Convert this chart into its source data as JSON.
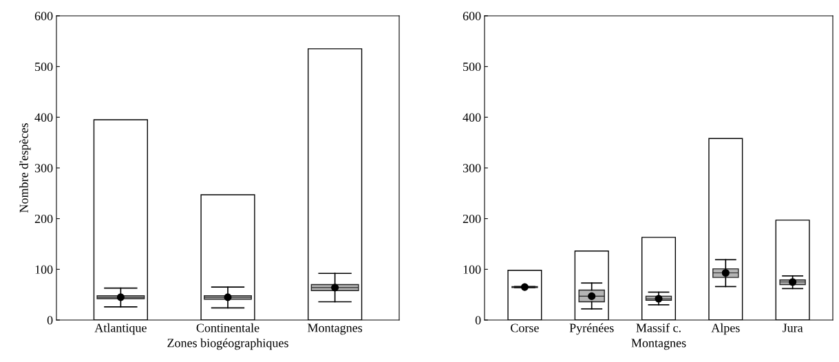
{
  "chart_data": [
    {
      "type": "bar",
      "categories": [
        "Atlantique",
        "Continentale",
        "Montagnes"
      ],
      "xlabel": "Zones biogéographiques",
      "ylabel": "Nombre d'espèces",
      "ylim": [
        0,
        600
      ],
      "yticks": [
        0,
        100,
        200,
        300,
        400,
        500,
        600
      ],
      "grid": false,
      "legend": false,
      "series": [
        {
          "color": "#ffffff",
          "values": [
            395,
            247,
            535
          ]
        },
        {
          "type": "box",
          "color": "#b4b4b4",
          "boxes": [
            {
              "low": 26,
              "q1": 42,
              "median": 45,
              "mean": 45,
              "q3": 48,
              "high": 63
            },
            {
              "low": 24,
              "q1": 41,
              "median": 45,
              "mean": 45,
              "q3": 48,
              "high": 65
            },
            {
              "low": 36,
              "q1": 58,
              "median": 64,
              "mean": 64,
              "q3": 70,
              "high": 92
            }
          ]
        }
      ]
    },
    {
      "type": "bar",
      "categories": [
        "Corse",
        "Pyrénées",
        "Massif c.",
        "Alpes",
        "Jura"
      ],
      "xlabel": "Montagnes",
      "ylim": [
        0,
        600
      ],
      "yticks": [
        0,
        100,
        200,
        300,
        400,
        500,
        600
      ],
      "grid": false,
      "legend": false,
      "series": [
        {
          "color": "#ffffff",
          "values": [
            98,
            136,
            163,
            358,
            197
          ]
        },
        {
          "type": "box",
          "color": "#b4b4b4",
          "boxes": [
            {
              "low": 64,
              "q1": 64,
              "median": 65,
              "mean": 65,
              "q3": 66,
              "high": 66
            },
            {
              "low": 22,
              "q1": 36,
              "median": 47,
              "mean": 47,
              "q3": 59,
              "high": 73
            },
            {
              "low": 30,
              "q1": 39,
              "median": 42,
              "mean": 42,
              "q3": 47,
              "high": 55
            },
            {
              "low": 66,
              "q1": 84,
              "median": 93,
              "mean": 93,
              "q3": 101,
              "high": 119
            },
            {
              "low": 62,
              "q1": 70,
              "median": 75,
              "mean": 75,
              "q3": 79,
              "high": 87
            }
          ]
        }
      ]
    }
  ]
}
